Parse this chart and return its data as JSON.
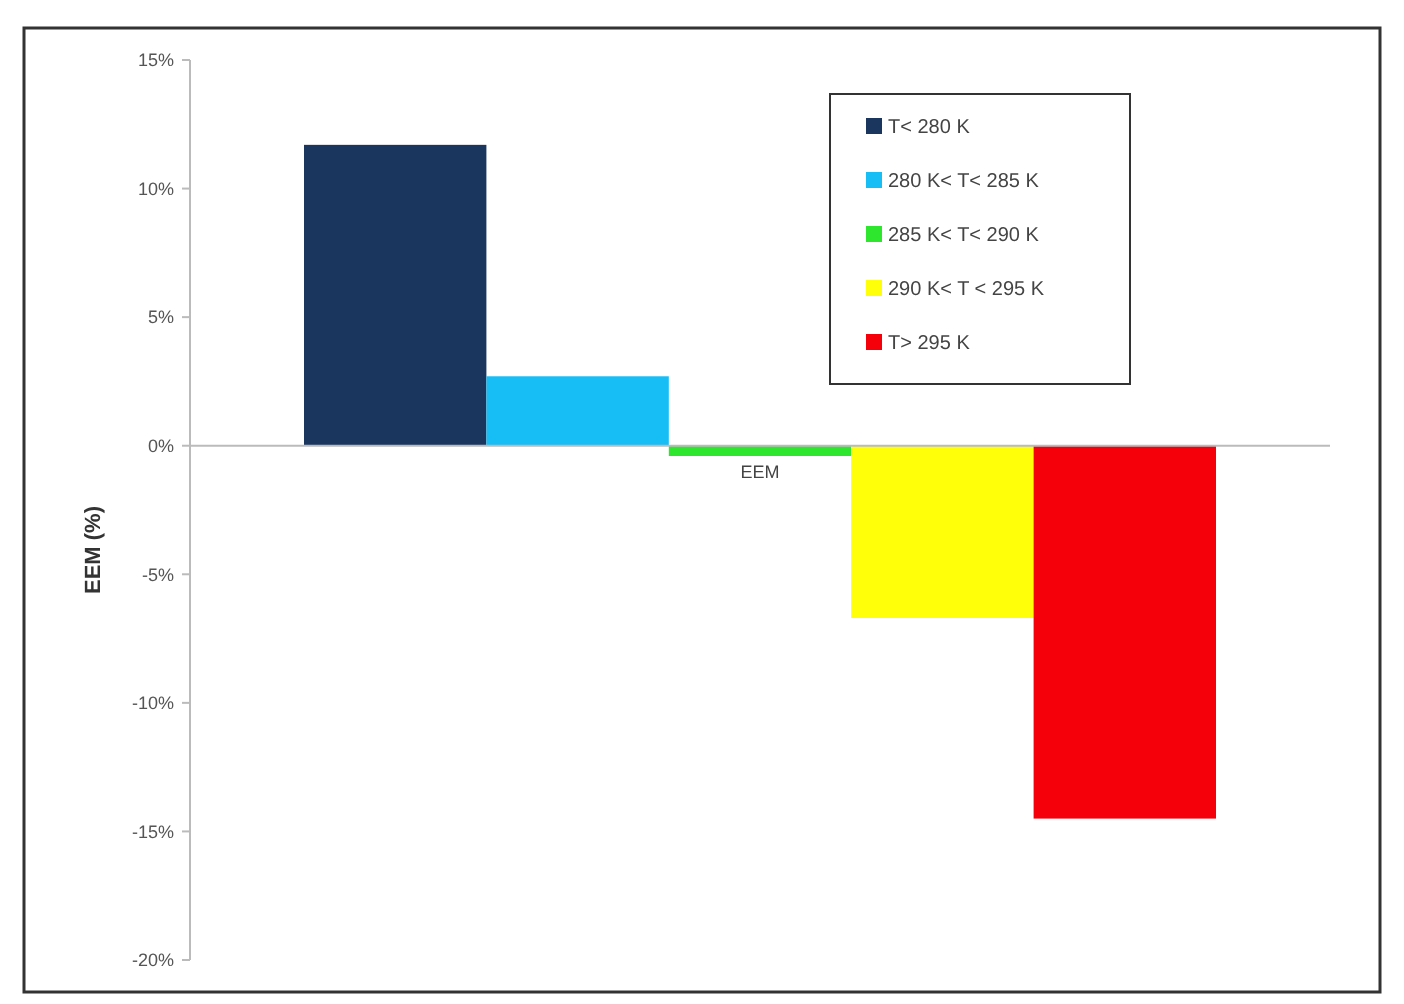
{
  "chart_data": {
    "type": "bar",
    "ylabel": "EEM (%)",
    "categories": [
      "EEM"
    ],
    "series": [
      {
        "name": "T< 280 K",
        "color": "#1a355e",
        "values": [
          11.7
        ]
      },
      {
        "name": "280 K< T< 285 K",
        "color": "#17bdf5",
        "values": [
          2.7
        ]
      },
      {
        "name": "285 K< T< 290 K",
        "color": "#2ee62e",
        "values": [
          -0.4
        ]
      },
      {
        "name": "290 K< T < 295 K",
        "color": "#ffff0a",
        "values": [
          -6.7
        ]
      },
      {
        "name": "T> 295 K",
        "color": "#f5000a",
        "values": [
          -14.5
        ]
      }
    ],
    "ylim": [
      -20,
      15
    ],
    "yticks": [
      {
        "value": 15,
        "label": "15%"
      },
      {
        "value": 10,
        "label": "10%"
      },
      {
        "value": 5,
        "label": "5%"
      },
      {
        "value": 0,
        "label": "0%"
      },
      {
        "value": -5,
        "label": "-5%"
      },
      {
        "value": -10,
        "label": "-10%"
      },
      {
        "value": -15,
        "label": "-15%"
      },
      {
        "value": -20,
        "label": "-20%"
      }
    ],
    "legend": "top right"
  }
}
